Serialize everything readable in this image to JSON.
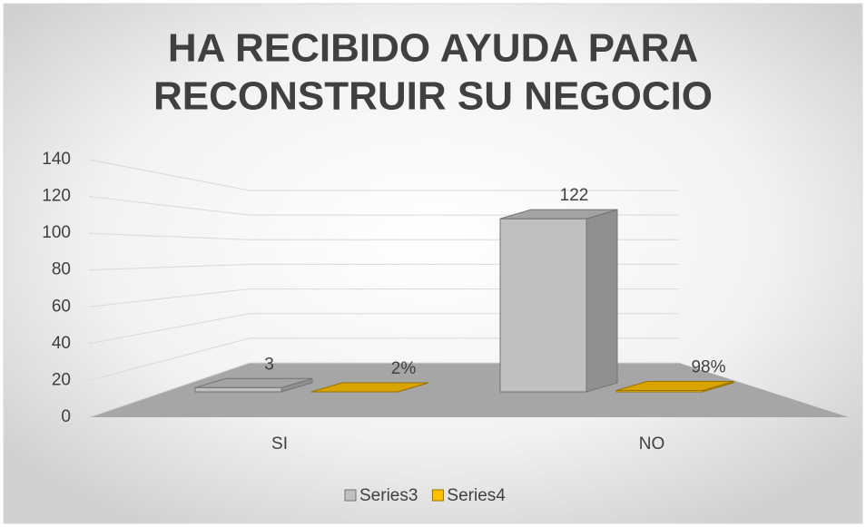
{
  "chart_data": {
    "type": "bar3d",
    "title": [
      "HA RECIBIDO AYUDA PARA",
      "RECONSTRUIR SU NEGOCIO"
    ],
    "categories": [
      "SI",
      "NO"
    ],
    "series": [
      {
        "name": "Series3",
        "color": "#c0c0c0",
        "values": [
          3,
          122
        ]
      },
      {
        "name": "Series4",
        "color": "#ffc000",
        "values": [
          0.02,
          0.98
        ],
        "value_labels": [
          "2%",
          "98%"
        ]
      }
    ],
    "ylim": [
      0,
      140
    ],
    "yticks": [
      0,
      20,
      40,
      60,
      80,
      100,
      120,
      140
    ],
    "grid": true,
    "legend": "bottom"
  }
}
